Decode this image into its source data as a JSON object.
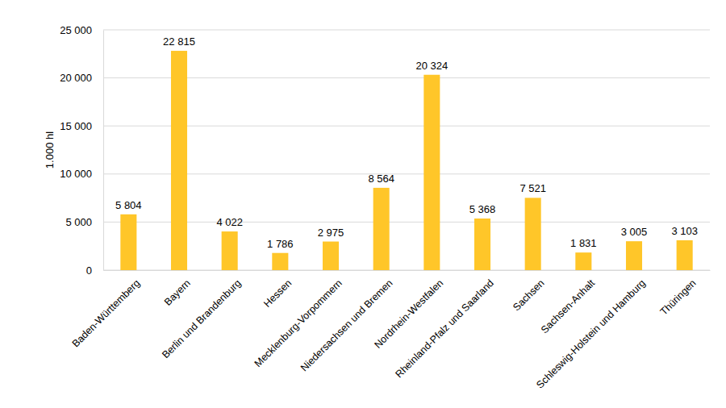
{
  "chart_data": {
    "type": "bar",
    "y_label": "1.000 hl",
    "categories": [
      "Baden-Württemberg",
      "Bayern",
      "Berlin und Brandenburg",
      "Hessen",
      "Mecklenburg-Vorpommern",
      "Niedersachsen und Bremen",
      "Nordrhein-Westfalen",
      "Rheinland-Pfalz und Saarland",
      "Sachsen",
      "Sachsen-Anhalt",
      "Schleswig-Holstein und Hamburg",
      "Thüringen"
    ],
    "values": [
      5804,
      22815,
      4022,
      1786,
      2975,
      8564,
      20324,
      5368,
      7521,
      1831,
      3005,
      3103
    ],
    "value_labels": [
      "5 804",
      "22 815",
      "4 022",
      "1 786",
      "2 975",
      "8 564",
      "20 324",
      "5 368",
      "7 521",
      "1 831",
      "3 005",
      "3 103"
    ],
    "color": "#ffc629",
    "ylim": [
      0,
      25000
    ],
    "yticks": [
      0,
      {
        "value": 5000,
        "label": "5 000"
      },
      {
        "value": 10000,
        "label": "10 000"
      },
      {
        "value": 15000,
        "label": "15 000"
      },
      {
        "value": 20000,
        "label": "20 000"
      },
      {
        "value": 25000,
        "label": "25 000"
      }
    ],
    "grid": true,
    "data_labels": true
  }
}
